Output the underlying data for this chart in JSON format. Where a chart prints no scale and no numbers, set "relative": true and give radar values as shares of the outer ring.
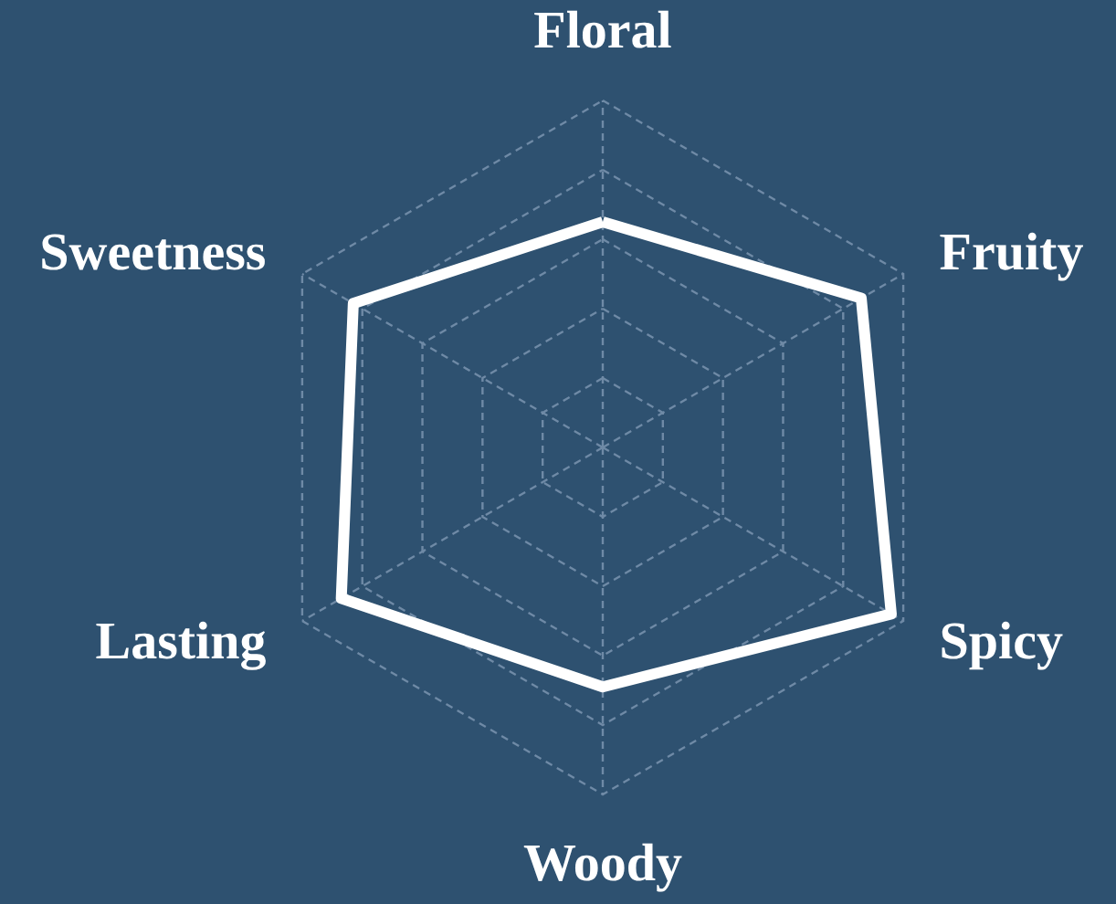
{
  "chart_data": {
    "type": "radar",
    "relative": true,
    "categories": [
      "Floral",
      "Fruity",
      "Spicy",
      "Woody",
      "Lasting",
      "Sweetness"
    ],
    "grid": true,
    "series": [
      {
        "color": "#ffffff",
        "values": [
          0.65,
          0.86,
          0.96,
          0.69,
          0.87,
          0.83
        ]
      }
    ]
  }
}
